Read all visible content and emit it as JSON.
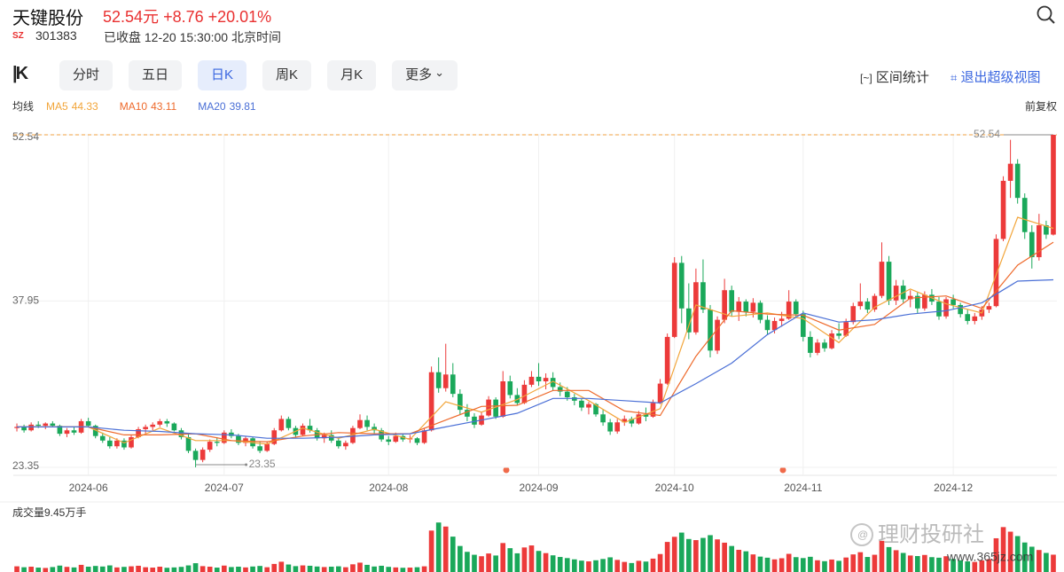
{
  "header": {
    "name": "天键股份",
    "price": "52.54元",
    "change": "+8.76",
    "change_pct": "+20.01%",
    "market": "SZ",
    "code": "301383",
    "status": "已收盘 12-20 15:30:00 北京时间"
  },
  "toolbar": {
    "tabs": [
      "分时",
      "五日",
      "日K",
      "周K",
      "月K",
      "更多"
    ],
    "active_tab": 2,
    "actions": [
      "区间统计",
      "退出超级视图"
    ]
  },
  "watermark": {
    "brand": "理财投研社",
    "site": "www.365jz.com"
  },
  "chart_data": {
    "type": "candlestick",
    "ma_title": "均线",
    "adjust": "前复权",
    "volume_title": "成交量9.45万手",
    "up_color": "#ec3a3a",
    "down_color": "#1aa85a",
    "ylim": [
      23.35,
      52.54
    ],
    "yticks": [
      52.54,
      37.95,
      23.35
    ],
    "grid": true,
    "vlim": [
      0,
      30
    ],
    "xticks": [
      {
        "value": 10,
        "label": "2024-06"
      },
      {
        "value": 29,
        "label": "2024-07"
      },
      {
        "value": 52,
        "label": "2024-08"
      },
      {
        "value": 73,
        "label": "2024-09"
      },
      {
        "value": 92,
        "label": "2024-10"
      },
      {
        "value": 110,
        "label": "2024-11"
      },
      {
        "value": 131,
        "label": "2024-12"
      }
    ],
    "candles": [
      [
        26.8,
        27.2,
        26.5,
        26.9
      ],
      [
        26.9,
        27.1,
        26.4,
        26.6
      ],
      [
        26.6,
        27.3,
        26.5,
        27.1
      ],
      [
        27.1,
        27.4,
        26.8,
        27.0
      ],
      [
        27.0,
        27.3,
        26.7,
        27.2
      ],
      [
        27.2,
        27.4,
        26.9,
        27.0
      ],
      [
        27.0,
        27.1,
        26.1,
        26.3
      ],
      [
        26.3,
        26.8,
        26.0,
        26.6
      ],
      [
        26.6,
        26.9,
        26.2,
        26.4
      ],
      [
        26.4,
        27.6,
        26.3,
        27.4
      ],
      [
        27.4,
        27.7,
        26.9,
        27.0
      ],
      [
        27.0,
        27.1,
        25.9,
        26.1
      ],
      [
        26.1,
        26.4,
        25.5,
        25.7
      ],
      [
        25.7,
        26.0,
        25.0,
        25.2
      ],
      [
        25.2,
        25.9,
        25.0,
        25.7
      ],
      [
        25.7,
        25.9,
        24.9,
        25.1
      ],
      [
        25.1,
        26.2,
        25.0,
        26.0
      ],
      [
        26.0,
        26.9,
        25.9,
        26.7
      ],
      [
        26.7,
        27.1,
        26.3,
        26.9
      ],
      [
        26.9,
        27.3,
        26.6,
        27.1
      ],
      [
        27.1,
        27.6,
        26.9,
        27.4
      ],
      [
        27.4,
        27.6,
        26.9,
        27.2
      ],
      [
        27.2,
        27.3,
        26.5,
        26.6
      ],
      [
        26.6,
        26.8,
        25.8,
        26.0
      ],
      [
        26.0,
        26.3,
        24.6,
        24.8
      ],
      [
        24.8,
        25.0,
        23.35,
        24.0
      ],
      [
        24.0,
        25.1,
        23.8,
        24.9
      ],
      [
        24.9,
        25.8,
        24.7,
        25.6
      ],
      [
        25.6,
        26.0,
        25.2,
        25.5
      ],
      [
        25.5,
        26.6,
        25.4,
        26.4
      ],
      [
        26.4,
        26.7,
        25.9,
        26.1
      ],
      [
        26.1,
        26.3,
        25.3,
        25.5
      ],
      [
        25.5,
        26.1,
        25.2,
        25.9
      ],
      [
        25.9,
        26.0,
        25.0,
        25.2
      ],
      [
        25.2,
        25.6,
        24.6,
        24.8
      ],
      [
        24.8,
        25.6,
        24.7,
        25.4
      ],
      [
        25.4,
        26.8,
        25.3,
        26.6
      ],
      [
        26.6,
        27.9,
        26.5,
        27.6
      ],
      [
        27.6,
        27.8,
        26.6,
        26.8
      ],
      [
        26.8,
        27.0,
        26.0,
        26.2
      ],
      [
        26.2,
        27.2,
        26.1,
        27.0
      ],
      [
        27.0,
        27.6,
        26.4,
        26.6
      ],
      [
        26.6,
        26.8,
        25.7,
        25.9
      ],
      [
        25.9,
        26.4,
        25.5,
        26.2
      ],
      [
        26.2,
        26.6,
        25.5,
        25.7
      ],
      [
        25.7,
        26.0,
        25.0,
        25.2
      ],
      [
        25.2,
        25.7,
        24.9,
        25.5
      ],
      [
        25.5,
        27.0,
        25.4,
        26.8
      ],
      [
        26.8,
        28.0,
        26.7,
        27.5
      ],
      [
        27.5,
        27.9,
        26.6,
        26.9
      ],
      [
        26.9,
        27.2,
        26.3,
        26.6
      ],
      [
        26.6,
        26.8,
        25.6,
        25.8
      ],
      [
        25.8,
        26.1,
        25.3,
        25.6
      ],
      [
        25.6,
        26.4,
        25.5,
        26.1
      ],
      [
        26.1,
        26.3,
        25.6,
        25.8
      ],
      [
        25.8,
        26.2,
        25.5,
        25.9
      ],
      [
        25.9,
        26.0,
        25.3,
        25.5
      ],
      [
        25.5,
        26.8,
        25.4,
        26.6
      ],
      [
        26.6,
        32.2,
        26.5,
        31.7
      ],
      [
        31.7,
        33.0,
        29.9,
        30.3
      ],
      [
        30.3,
        34.2,
        30.0,
        31.5
      ],
      [
        31.5,
        32.5,
        29.5,
        29.8
      ],
      [
        29.8,
        30.2,
        28.0,
        28.4
      ],
      [
        28.4,
        28.9,
        27.4,
        27.8
      ],
      [
        27.8,
        28.1,
        26.8,
        27.1
      ],
      [
        27.1,
        28.2,
        27.0,
        27.9
      ],
      [
        27.9,
        29.6,
        27.8,
        29.3
      ],
      [
        29.3,
        29.5,
        27.6,
        27.8
      ],
      [
        27.8,
        31.8,
        27.7,
        30.9
      ],
      [
        30.9,
        31.4,
        29.4,
        29.7
      ],
      [
        29.7,
        30.3,
        28.8,
        29.0
      ],
      [
        29.0,
        31.0,
        28.9,
        30.6
      ],
      [
        30.6,
        31.8,
        30.4,
        31.3
      ],
      [
        31.3,
        32.5,
        30.5,
        30.9
      ],
      [
        30.9,
        31.6,
        30.2,
        31.2
      ],
      [
        31.2,
        31.7,
        30.1,
        30.4
      ],
      [
        30.4,
        30.8,
        29.6,
        30.0
      ],
      [
        30.0,
        30.4,
        29.2,
        29.5
      ],
      [
        29.5,
        29.8,
        28.8,
        29.2
      ],
      [
        29.2,
        29.4,
        28.3,
        28.6
      ],
      [
        28.6,
        29.1,
        28.0,
        28.9
      ],
      [
        28.9,
        29.0,
        27.8,
        28.0
      ],
      [
        28.0,
        28.4,
        27.0,
        27.3
      ],
      [
        27.3,
        27.6,
        26.2,
        26.5
      ],
      [
        26.5,
        27.6,
        26.3,
        27.3
      ],
      [
        27.3,
        27.9,
        27.0,
        27.6
      ],
      [
        27.6,
        27.8,
        26.9,
        27.2
      ],
      [
        27.2,
        28.3,
        27.1,
        28.0
      ],
      [
        28.0,
        28.6,
        27.4,
        27.8
      ],
      [
        27.8,
        29.3,
        27.7,
        29.0
      ],
      [
        29.0,
        31.1,
        28.9,
        30.7
      ],
      [
        30.7,
        35.1,
        30.6,
        34.8
      ],
      [
        34.8,
        41.8,
        34.7,
        41.3
      ],
      [
        41.3,
        41.9,
        36.0,
        37.3
      ],
      [
        37.3,
        39.5,
        34.6,
        35.2
      ],
      [
        35.2,
        40.8,
        35.0,
        39.6
      ],
      [
        39.6,
        41.6,
        36.9,
        37.2
      ],
      [
        37.2,
        37.6,
        33.0,
        33.6
      ],
      [
        33.6,
        36.6,
        33.3,
        36.3
      ],
      [
        36.3,
        39.9,
        36.0,
        38.9
      ],
      [
        38.9,
        39.3,
        36.6,
        37.0
      ],
      [
        37.0,
        38.3,
        36.2,
        37.9
      ],
      [
        37.9,
        38.1,
        36.6,
        37.0
      ],
      [
        37.0,
        38.2,
        36.5,
        37.8
      ],
      [
        37.8,
        38.0,
        36.0,
        36.3
      ],
      [
        36.3,
        36.7,
        35.0,
        35.4
      ],
      [
        35.4,
        36.5,
        35.1,
        36.2
      ],
      [
        36.2,
        37.0,
        35.7,
        36.4
      ],
      [
        36.4,
        38.9,
        36.3,
        37.9
      ],
      [
        37.9,
        38.1,
        36.5,
        36.8
      ],
      [
        36.8,
        37.1,
        34.4,
        34.8
      ],
      [
        34.8,
        35.3,
        33.0,
        33.4
      ],
      [
        33.4,
        34.6,
        33.2,
        34.3
      ],
      [
        34.3,
        34.6,
        33.5,
        33.8
      ],
      [
        33.8,
        35.4,
        33.7,
        35.1
      ],
      [
        35.1,
        36.0,
        34.6,
        34.9
      ],
      [
        34.9,
        36.4,
        34.8,
        36.1
      ],
      [
        36.1,
        37.8,
        35.9,
        37.5
      ],
      [
        37.5,
        39.5,
        37.2,
        37.9
      ],
      [
        37.9,
        38.2,
        36.9,
        37.2
      ],
      [
        37.2,
        38.6,
        37.0,
        38.4
      ],
      [
        38.4,
        43.1,
        38.2,
        41.4
      ],
      [
        41.4,
        41.9,
        37.6,
        38.0
      ],
      [
        38.0,
        39.8,
        37.6,
        39.3
      ],
      [
        39.3,
        39.8,
        37.8,
        38.1
      ],
      [
        38.1,
        38.9,
        37.4,
        38.4
      ],
      [
        38.4,
        38.7,
        36.9,
        37.3
      ],
      [
        37.3,
        38.8,
        37.1,
        38.5
      ],
      [
        38.5,
        39.0,
        37.6,
        37.9
      ],
      [
        37.9,
        38.3,
        36.3,
        36.6
      ],
      [
        36.6,
        38.3,
        36.4,
        38.1
      ],
      [
        38.1,
        38.5,
        37.3,
        37.6
      ],
      [
        37.6,
        37.8,
        36.5,
        36.8
      ],
      [
        36.8,
        37.2,
        35.9,
        36.2
      ],
      [
        36.2,
        36.9,
        35.9,
        36.6
      ],
      [
        36.6,
        37.5,
        36.3,
        37.2
      ],
      [
        37.2,
        37.8,
        36.9,
        37.5
      ],
      [
        37.5,
        43.8,
        37.4,
        43.4
      ],
      [
        43.4,
        48.9,
        43.2,
        48.5
      ],
      [
        48.5,
        52.1,
        47.0,
        50.0
      ],
      [
        50.0,
        50.4,
        46.5,
        47.0
      ],
      [
        47.0,
        47.4,
        43.4,
        44.0
      ],
      [
        44.0,
        44.6,
        40.8,
        41.8
      ],
      [
        41.8,
        45.6,
        41.5,
        44.6
      ],
      [
        44.6,
        45.0,
        43.4,
        43.78
      ],
      [
        43.78,
        52.54,
        43.7,
        52.54
      ]
    ],
    "volumes": [
      3.1,
      2.6,
      2.9,
      2.4,
      2.2,
      2.7,
      3.5,
      2.8,
      2.5,
      3.9,
      2.9,
      3.3,
      3.0,
      3.6,
      2.5,
      2.8,
      3.1,
      3.4,
      2.6,
      2.4,
      2.9,
      2.3,
      2.5,
      2.8,
      3.6,
      4.8,
      3.2,
      2.9,
      2.4,
      3.5,
      2.7,
      2.9,
      2.5,
      3.0,
      3.3,
      2.6,
      4.4,
      5.6,
      4.1,
      3.2,
      3.6,
      3.4,
      3.0,
      2.7,
      2.9,
      3.1,
      2.6,
      4.2,
      5.1,
      3.9,
      3.0,
      3.4,
      2.8,
      2.5,
      2.3,
      2.4,
      2.6,
      3.1,
      22.6,
      27.0,
      24.8,
      19.3,
      14.2,
      11.0,
      9.4,
      8.6,
      10.1,
      9.0,
      15.8,
      13.0,
      10.2,
      13.4,
      14.5,
      11.5,
      10.3,
      9.1,
      8.2,
      7.6,
      6.9,
      6.2,
      5.8,
      6.4,
      7.1,
      8.0,
      6.6,
      5.5,
      4.9,
      6.1,
      5.7,
      7.3,
      9.8,
      16.4,
      19.2,
      21.5,
      18.0,
      17.4,
      18.6,
      20.1,
      17.8,
      16.0,
      14.2,
      12.1,
      11.3,
      9.6,
      8.4,
      7.8,
      6.9,
      7.5,
      9.9,
      8.1,
      7.6,
      8.3,
      6.4,
      5.9,
      6.8,
      6.1,
      7.9,
      9.6,
      10.8,
      8.2,
      9.4,
      17.0,
      13.6,
      11.9,
      10.4,
      9.0,
      8.7,
      9.3,
      8.1,
      7.8,
      8.6,
      7.1,
      6.4,
      5.8,
      5.5,
      6.3,
      7.0,
      18.4,
      24.5,
      22.0,
      19.6,
      16.1,
      13.8,
      12.0,
      10.4,
      9.45
    ],
    "series": [
      {
        "name": "MA5",
        "color": "#f2a53a",
        "legend_value": 44.33,
        "x": [
          0,
          5,
          10,
          15,
          20,
          25,
          30,
          35,
          40,
          45,
          50,
          55,
          60,
          65,
          70,
          75,
          80,
          85,
          90,
          95,
          100,
          105,
          110,
          115,
          120,
          125,
          130,
          135,
          140,
          145
        ],
        "values": [
          26.9,
          26.9,
          26.9,
          25.5,
          26.8,
          25.7,
          25.7,
          25.4,
          26.8,
          25.9,
          26.7,
          25.8,
          29.1,
          28.2,
          29.3,
          30.9,
          29.2,
          27.3,
          28.5,
          37.6,
          36.6,
          36.9,
          36.4,
          34.3,
          37.4,
          39.0,
          37.7,
          36.9,
          45.3,
          44.33
        ]
      },
      {
        "name": "MA10",
        "color": "#ee6a2c",
        "legend_value": 43.11,
        "x": [
          0,
          5,
          10,
          15,
          20,
          25,
          30,
          35,
          40,
          45,
          50,
          55,
          60,
          65,
          70,
          75,
          80,
          85,
          90,
          95,
          100,
          105,
          110,
          115,
          120,
          125,
          130,
          135,
          140,
          145
        ],
        "values": [
          26.9,
          26.9,
          26.9,
          26.2,
          26.2,
          26.3,
          25.7,
          25.6,
          26.1,
          26.4,
          26.3,
          26.3,
          27.5,
          28.7,
          28.8,
          30.1,
          30.1,
          28.3,
          27.9,
          33.1,
          37.1,
          36.8,
          36.7,
          35.4,
          35.9,
          38.2,
          38.4,
          37.3,
          41.1,
          43.11
        ]
      },
      {
        "name": "MA20",
        "color": "#4a6fd6",
        "legend_value": 39.81,
        "x": [
          0,
          5,
          10,
          15,
          20,
          25,
          30,
          35,
          40,
          45,
          50,
          55,
          60,
          65,
          70,
          75,
          80,
          85,
          90,
          95,
          100,
          105,
          110,
          115,
          120,
          125,
          130,
          135,
          140,
          145
        ],
        "values": [
          26.9,
          26.9,
          26.9,
          26.6,
          26.5,
          26.3,
          26.2,
          25.9,
          25.9,
          26.0,
          26.2,
          26.3,
          26.9,
          27.5,
          28.1,
          29.4,
          29.4,
          29.2,
          29.0,
          30.7,
          32.5,
          35.0,
          36.9,
          36.1,
          36.3,
          36.8,
          37.1,
          37.8,
          39.7,
          39.81
        ]
      }
    ]
  }
}
